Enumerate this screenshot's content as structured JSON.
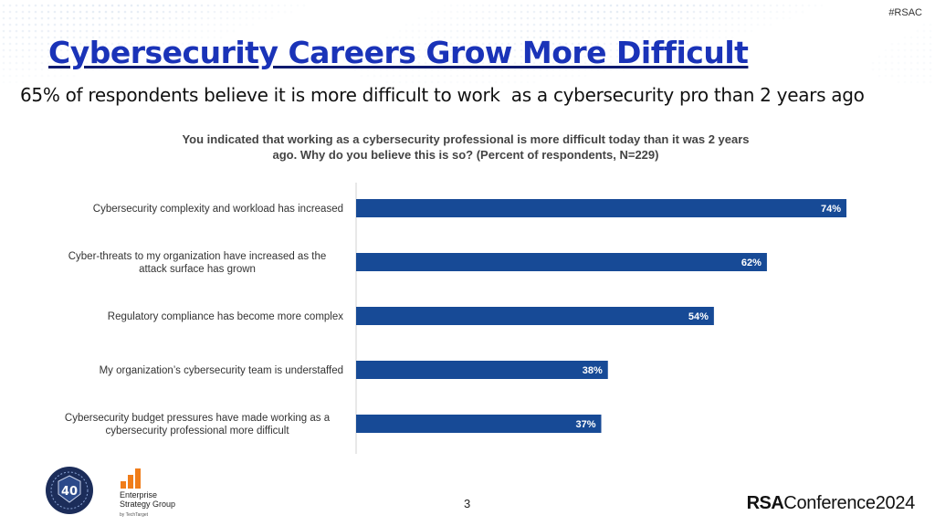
{
  "header": {
    "hashtag": "#RSAC",
    "title": "Cybersecurity Careers Grow More Difficult",
    "subtitle": "65% of respondents believe it is more difficult to work  as a cybersecurity pro than 2 years ago"
  },
  "chart_data": {
    "type": "bar",
    "orientation": "horizontal",
    "title": "You indicated that working as a cybersecurity professional is more difficult today than it was 2 years ago. Why do you believe this is so? (Percent of respondents, N=229)",
    "categories": [
      [
        "Cybersecurity complexity and workload has increased"
      ],
      [
        "Cyber-threats to my organization have increased as the",
        "attack surface has grown"
      ],
      [
        "Regulatory compliance has become more complex"
      ],
      [
        "My organization’s cybersecurity team is understaffed"
      ],
      [
        "Cybersecurity budget pressures have made working as a",
        "cybersecurity professional more difficult"
      ]
    ],
    "values": [
      74,
      62,
      54,
      38,
      37
    ],
    "value_labels": [
      "74%",
      "62%",
      "54%",
      "38%",
      "37%"
    ],
    "xlim": [
      0,
      80
    ],
    "bar_color": "#174a96",
    "grid": false,
    "legend": "none"
  },
  "footer": {
    "page_number": "3",
    "esg_name_line1": "Enterprise",
    "esg_name_line2": "Strategy Group",
    "esg_by": "by TechTarget",
    "badge_number": "40",
    "rsac_brand": "RSA",
    "rsac_conference": "Conference",
    "rsac_year": "2024"
  },
  "colors": {
    "title": "#1a33b8",
    "bar": "#174a96",
    "esg_orange": "#f07d1a"
  }
}
